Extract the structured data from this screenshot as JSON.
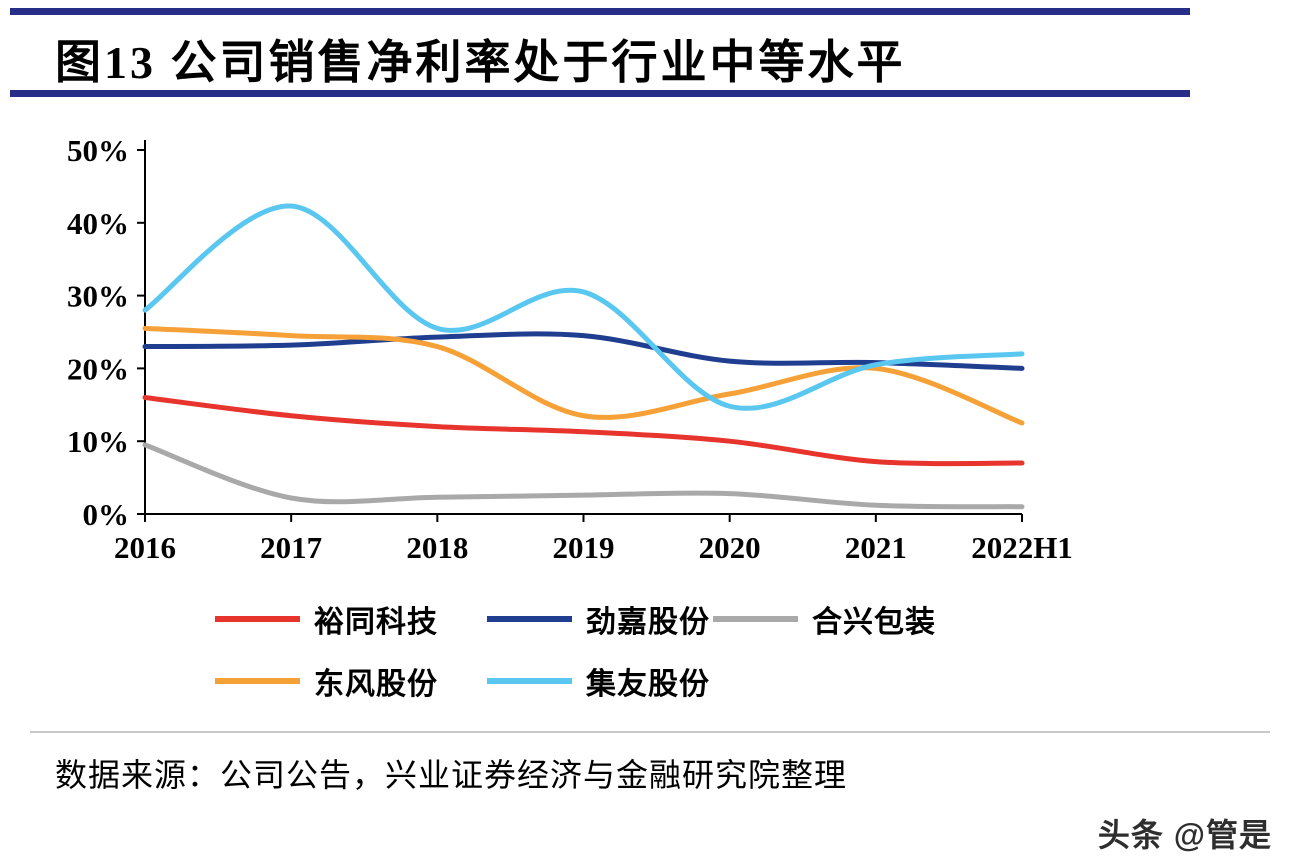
{
  "title": "图13 公司销售净利率处于行业中等水平",
  "source_note": "数据来源：公司公告，兴业证券经济与金融研究院整理",
  "watermark": "头条 @管是",
  "colors": {
    "accent_bar": "#272E87",
    "axis": "#000000",
    "divider": "#C9C9C9"
  },
  "chart_data": {
    "type": "line",
    "title": "图13 公司销售净利率处于行业中等水平",
    "categories": [
      "2016",
      "2017",
      "2018",
      "2019",
      "2020",
      "2021",
      "2022H1"
    ],
    "yticks": [
      "0%",
      "10%",
      "20%",
      "30%",
      "40%",
      "50%"
    ],
    "ylim": [
      0,
      50
    ],
    "unit": "%",
    "grid": false,
    "legend_position": "bottom",
    "series": [
      {
        "name": "裕同科技",
        "color": "#E7342C",
        "values": [
          16,
          13.5,
          12,
          11.3,
          10,
          7.2,
          7
        ]
      },
      {
        "name": "劲嘉股份",
        "color": "#1F3E8F",
        "values": [
          23,
          23.2,
          24.3,
          24.5,
          21,
          20.8,
          20
        ]
      },
      {
        "name": "合兴包装",
        "color": "#A9A9A9",
        "values": [
          9.5,
          2.2,
          2.3,
          2.6,
          2.8,
          1.2,
          1
        ]
      },
      {
        "name": "东风股份",
        "color": "#F6A137",
        "values": [
          25.5,
          24.5,
          23,
          13.5,
          16.5,
          20,
          12.5
        ]
      },
      {
        "name": "集友股份",
        "color": "#59C7F0",
        "values": [
          28,
          42.3,
          25.5,
          30.5,
          14.8,
          20.5,
          22
        ]
      }
    ]
  }
}
